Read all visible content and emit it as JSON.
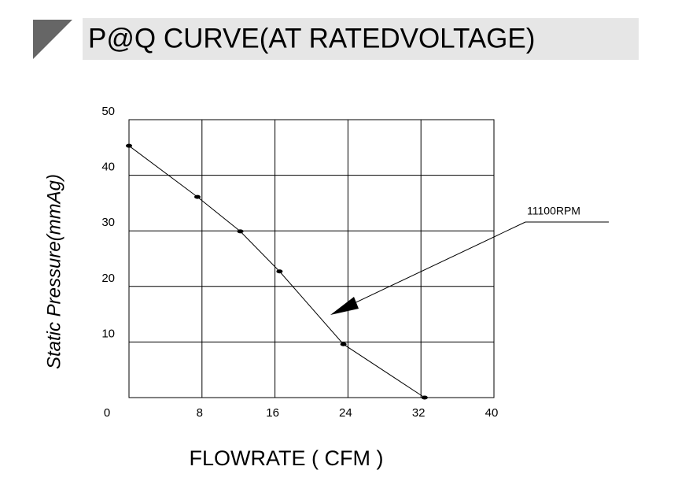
{
  "chart_data": {
    "type": "line",
    "title": "P@Q CURVE(AT RATEDVOLTAGE)",
    "x_label": "FLOWRATE ( CFM )",
    "y_label": "Static Pressure(mmAg)",
    "annotation": "11100RPM",
    "x": [
      0,
      7.5,
      12.2,
      16.5,
      23.5,
      32.4
    ],
    "series": [
      {
        "name": "11100RPM",
        "color": "#000000",
        "values": [
          45.3,
          36.1,
          29.9,
          22.7,
          9.6,
          0
        ]
      }
    ],
    "xlim": [
      0,
      40
    ],
    "xticks": [
      0,
      8,
      16,
      24,
      32,
      40
    ],
    "ylim": [
      0,
      50
    ],
    "yticks": [
      10,
      20,
      30,
      40,
      50
    ],
    "grid": true
  }
}
